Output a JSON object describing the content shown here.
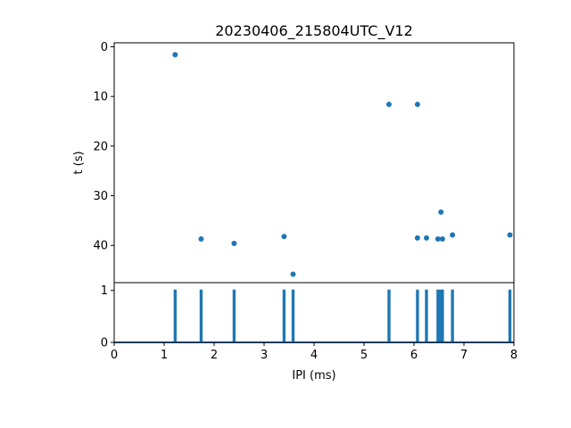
{
  "chart_data": [
    {
      "panel": "top",
      "type": "scatter",
      "title": "20230406_215804UTC_V12",
      "xlabel": "",
      "ylabel": "t (s)",
      "xlim": [
        0,
        8
      ],
      "ylim": [
        47.5,
        -0.8
      ],
      "y_inverted": true,
      "yticks": [
        0,
        10,
        20,
        30,
        40
      ],
      "grid": false,
      "points": [
        {
          "x": 1.22,
          "y": 1.6
        },
        {
          "x": 1.74,
          "y": 38.7
        },
        {
          "x": 2.4,
          "y": 39.6
        },
        {
          "x": 3.4,
          "y": 38.2
        },
        {
          "x": 3.58,
          "y": 45.8
        },
        {
          "x": 5.5,
          "y": 11.6
        },
        {
          "x": 6.07,
          "y": 11.6
        },
        {
          "x": 6.07,
          "y": 38.5
        },
        {
          "x": 6.25,
          "y": 38.5
        },
        {
          "x": 6.48,
          "y": 38.7
        },
        {
          "x": 6.54,
          "y": 33.3
        },
        {
          "x": 6.57,
          "y": 38.7
        },
        {
          "x": 6.77,
          "y": 37.9
        },
        {
          "x": 7.92,
          "y": 37.9
        }
      ],
      "color": "#1f77b4"
    },
    {
      "panel": "bottom",
      "type": "line",
      "xlabel": "IPI (ms)",
      "ylabel": "",
      "xlim": [
        0,
        8
      ],
      "ylim": [
        0,
        1.15
      ],
      "xticks": [
        0,
        1,
        2,
        3,
        4,
        5,
        6,
        7,
        8
      ],
      "yticks": [
        0,
        1
      ],
      "grid": false,
      "spikes": [
        1.22,
        1.74,
        2.4,
        3.4,
        3.58,
        5.5,
        6.07,
        6.25,
        6.48,
        6.54,
        6.57,
        6.77,
        7.92
      ],
      "spike_value": 1,
      "color": "#1f77b4"
    }
  ]
}
